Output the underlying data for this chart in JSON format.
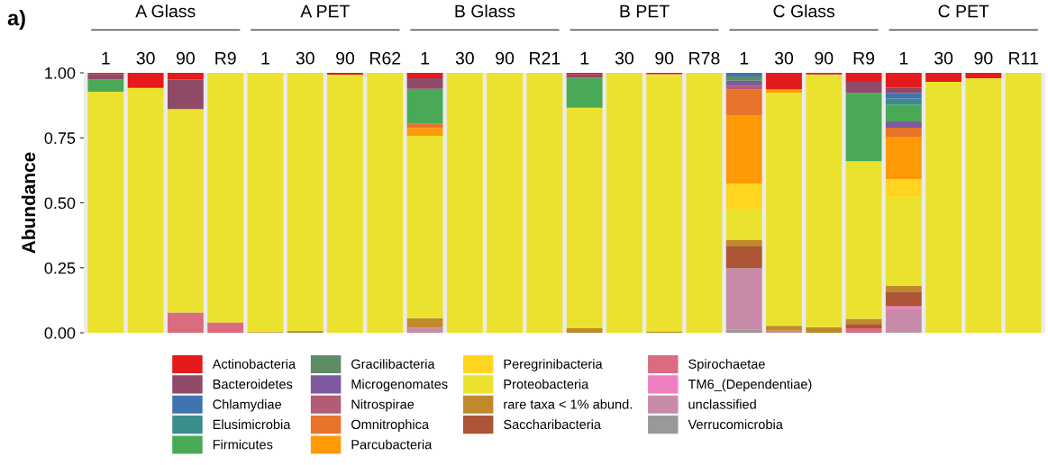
{
  "chart_data": {
    "type": "bar",
    "stacked": true,
    "ylabel": "Abundance",
    "annotations": [
      "a)",
      "A Glass",
      "A PET",
      "B Glass",
      "B PET",
      "C Glass",
      "C PET"
    ],
    "categories": [
      "1",
      "30",
      "90",
      "R9",
      "1",
      "30",
      "90",
      "R62",
      "1",
      "30",
      "90",
      "R21",
      "1",
      "30",
      "90",
      "R78",
      "1",
      "30",
      "90",
      "R9",
      "1",
      "30",
      "90",
      "R11"
    ],
    "ylim": [
      0,
      1
    ],
    "yticks": [
      {
        "value": 0,
        "label": "0.00"
      },
      {
        "value": 0.25,
        "label": "0.25"
      },
      {
        "value": 0.5,
        "label": "0.50"
      },
      {
        "value": 0.75,
        "label": "0.75"
      },
      {
        "value": 1,
        "label": "1.00"
      }
    ],
    "legend": "bottom",
    "series": [
      {
        "name": "Verrucomicrobia",
        "color": "#999999",
        "values": [
          0,
          0,
          0,
          0,
          0,
          0,
          0,
          0,
          0,
          0,
          0,
          0,
          0,
          0,
          0,
          0,
          0.012,
          0,
          0,
          0,
          0.003,
          0,
          0,
          0
        ]
      },
      {
        "name": "unclassified",
        "color": "#c78ba9",
        "values": [
          0,
          0,
          0,
          0,
          0,
          0,
          0,
          0,
          0.02,
          0,
          0,
          0,
          0,
          0,
          0,
          0,
          0.236,
          0.008,
          0,
          0,
          0.087,
          0,
          0,
          0
        ]
      },
      {
        "name": "TM6_(Dependentiae)",
        "color": "#f07fc0",
        "values": [
          0,
          0,
          0,
          0,
          0,
          0,
          0,
          0,
          0,
          0,
          0,
          0,
          0,
          0,
          0,
          0,
          0,
          0,
          0,
          0,
          0.012,
          0,
          0,
          0
        ]
      },
      {
        "name": "Spirochaetae",
        "color": "#d96c7f",
        "values": [
          0,
          0,
          0.078,
          0.04,
          0,
          0,
          0,
          0,
          0,
          0,
          0,
          0,
          0,
          0,
          0,
          0,
          0,
          0,
          0,
          0.017,
          0,
          0,
          0,
          0
        ]
      },
      {
        "name": "Saccharibacteria",
        "color": "#ac5537",
        "values": [
          0,
          0,
          0,
          0,
          0,
          0,
          0,
          0,
          0,
          0,
          0,
          0,
          0,
          0,
          0,
          0,
          0.084,
          0,
          0,
          0.017,
          0.056,
          0,
          0,
          0
        ]
      },
      {
        "name": "rare taxa < 1% abund.",
        "color": "#c08a2a",
        "values": [
          0,
          0,
          0,
          0,
          0.003,
          0.008,
          0,
          0,
          0.036,
          0,
          0,
          0,
          0.017,
          0,
          0.005,
          0,
          0.026,
          0.019,
          0.022,
          0.02,
          0.023,
          0,
          0,
          0
        ]
      },
      {
        "name": "Proteobacteria",
        "color": "#ebe22f",
        "values": [
          0.927,
          0.942,
          0.783,
          0.96,
          0.997,
          0.992,
          0.993,
          1,
          0.702,
          1,
          1,
          1,
          0.849,
          1,
          0.99,
          1,
          0.116,
          0.897,
          0.972,
          0.606,
          0.341,
          0.965,
          0.979,
          1
        ]
      },
      {
        "name": "Peregrinibacteria",
        "color": "#ffd51f",
        "values": [
          0,
          0,
          0,
          0,
          0,
          0,
          0,
          0,
          0,
          0,
          0,
          0,
          0,
          0,
          0,
          0,
          0.1,
          0,
          0,
          0,
          0.07,
          0,
          0,
          0
        ]
      },
      {
        "name": "Parcubacteria",
        "color": "#ff9a06",
        "values": [
          0,
          0,
          0,
          0,
          0,
          0,
          0,
          0,
          0.03,
          0,
          0,
          0,
          0,
          0,
          0,
          0,
          0.262,
          0.013,
          0,
          0,
          0.162,
          0,
          0,
          0
        ]
      },
      {
        "name": "Omnitrophica",
        "color": "#e8732a",
        "values": [
          0,
          0,
          0,
          0,
          0,
          0,
          0,
          0,
          0.017,
          0,
          0,
          0,
          0,
          0,
          0,
          0,
          0.101,
          0,
          0,
          0,
          0.035,
          0,
          0,
          0
        ]
      },
      {
        "name": "Nitrospirae",
        "color": "#b35c75",
        "values": [
          0,
          0,
          0,
          0,
          0,
          0,
          0,
          0,
          0,
          0,
          0,
          0,
          0,
          0,
          0,
          0,
          0.014,
          0,
          0,
          0,
          0,
          0,
          0,
          0
        ]
      },
      {
        "name": "Microgenomates",
        "color": "#7f5a9e",
        "values": [
          0,
          0,
          0,
          0,
          0,
          0,
          0,
          0,
          0,
          0,
          0,
          0,
          0,
          0,
          0,
          0,
          0.019,
          0,
          0,
          0,
          0.024,
          0,
          0,
          0
        ]
      },
      {
        "name": "Gracilibacteria",
        "color": "#5e8c67",
        "values": [
          0,
          0,
          0,
          0,
          0,
          0,
          0,
          0,
          0,
          0,
          0,
          0,
          0,
          0,
          0,
          0,
          0.016,
          0,
          0,
          0,
          0,
          0,
          0,
          0
        ]
      },
      {
        "name": "Firmicutes",
        "color": "#4aa957",
        "values": [
          0.048,
          0,
          0,
          0,
          0,
          0,
          0,
          0,
          0.134,
          0,
          0,
          0,
          0.115,
          0,
          0,
          0,
          0,
          0,
          0,
          0.263,
          0.064,
          0,
          0,
          0
        ]
      },
      {
        "name": "Elusimicrobia",
        "color": "#3a8e8a",
        "values": [
          0,
          0,
          0,
          0,
          0,
          0,
          0,
          0,
          0,
          0,
          0,
          0,
          0,
          0,
          0,
          0,
          0,
          0,
          0,
          0,
          0.024,
          0,
          0,
          0
        ]
      },
      {
        "name": "Chlamydiae",
        "color": "#3f74b0",
        "values": [
          0,
          0,
          0,
          0,
          0,
          0,
          0,
          0,
          0,
          0,
          0,
          0,
          0,
          0,
          0,
          0,
          0.015,
          0,
          0,
          0,
          0.021,
          0,
          0,
          0
        ]
      },
      {
        "name": "Bacteroidetes",
        "color": "#8f4a68",
        "values": [
          0.02,
          0,
          0.113,
          0,
          0,
          0,
          0,
          0,
          0.04,
          0,
          0,
          0,
          0.013,
          0,
          0,
          0,
          0,
          0,
          0,
          0.042,
          0.021,
          0,
          0,
          0
        ]
      },
      {
        "name": "Actinobacteria",
        "color": "#e41a1c",
        "values": [
          0.005,
          0.058,
          0.027,
          0,
          0,
          0,
          0.007,
          0,
          0.021,
          0,
          0,
          0,
          0.006,
          0,
          0.005,
          0,
          0,
          0.064,
          0.006,
          0.035,
          0.058,
          0.035,
          0.021,
          0
        ]
      }
    ]
  }
}
